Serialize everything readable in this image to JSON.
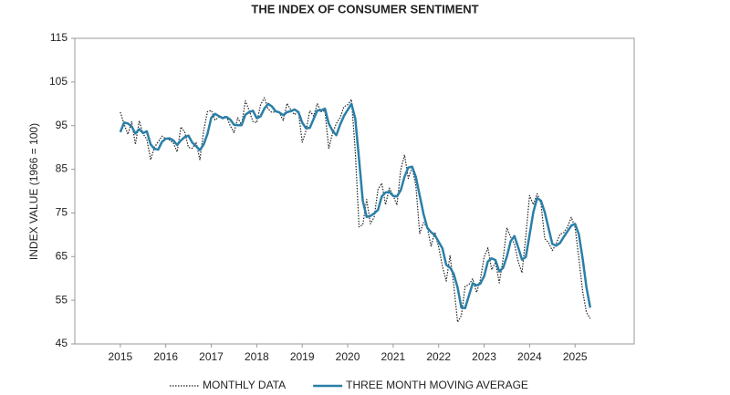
{
  "chart_data": {
    "type": "line",
    "title": "THE INDEX OF CONSUMER SENTIMENT",
    "y_label": "INDEX VALUE (1966 = 100)",
    "xlim": [
      2014,
      2026.3
    ],
    "ylim": [
      45,
      115
    ],
    "xticks": [
      2015,
      2016,
      2017,
      2018,
      2019,
      2020,
      2021,
      2022,
      2023,
      2024,
      2025
    ],
    "yticks": [
      45,
      55,
      65,
      75,
      85,
      95,
      105,
      115
    ],
    "legend": "bottom",
    "x": [
      2015,
      2015.083,
      2015.167,
      2015.25,
      2015.333,
      2015.417,
      2015.5,
      2015.583,
      2015.667,
      2015.75,
      2015.833,
      2015.917,
      2016,
      2016.083,
      2016.167,
      2016.25,
      2016.333,
      2016.417,
      2016.5,
      2016.583,
      2016.667,
      2016.75,
      2016.833,
      2016.917,
      2017,
      2017.083,
      2017.167,
      2017.25,
      2017.333,
      2017.417,
      2017.5,
      2017.583,
      2017.667,
      2017.75,
      2017.833,
      2017.917,
      2018,
      2018.083,
      2018.167,
      2018.25,
      2018.333,
      2018.417,
      2018.5,
      2018.583,
      2018.667,
      2018.75,
      2018.833,
      2018.917,
      2019,
      2019.083,
      2019.167,
      2019.25,
      2019.333,
      2019.417,
      2019.5,
      2019.583,
      2019.667,
      2019.75,
      2019.833,
      2019.917,
      2020,
      2020.083,
      2020.167,
      2020.25,
      2020.333,
      2020.417,
      2020.5,
      2020.583,
      2020.667,
      2020.75,
      2020.833,
      2020.917,
      2021,
      2021.083,
      2021.167,
      2021.25,
      2021.333,
      2021.417,
      2021.5,
      2021.583,
      2021.667,
      2021.75,
      2021.833,
      2021.917,
      2022,
      2022.083,
      2022.167,
      2022.25,
      2022.333,
      2022.417,
      2022.5,
      2022.583,
      2022.667,
      2022.75,
      2022.833,
      2022.917,
      2023,
      2023.083,
      2023.167,
      2023.25,
      2023.333,
      2023.417,
      2023.5,
      2023.583,
      2023.667,
      2023.75,
      2023.833,
      2023.917,
      2024,
      2024.083,
      2024.167,
      2024.25,
      2024.333,
      2024.417,
      2024.5,
      2024.583,
      2024.667,
      2024.75,
      2024.833,
      2024.917,
      2025,
      2025.083,
      2025.167,
      2025.25,
      2025.333
    ],
    "series": [
      {
        "name": "MONTHLY DATA",
        "color": "#222222",
        "dash": "dotted",
        "values": [
          98.1,
          95.4,
          93.0,
          95.9,
          90.7,
          96.1,
          93.1,
          91.9,
          87.2,
          90.0,
          91.3,
          92.6,
          92.0,
          91.7,
          91.0,
          89.0,
          94.7,
          93.5,
          90.0,
          89.8,
          91.2,
          87.2,
          93.8,
          98.2,
          98.5,
          96.3,
          96.9,
          97.0,
          97.1,
          95.0,
          93.4,
          96.8,
          95.1,
          100.7,
          98.5,
          95.9,
          95.7,
          99.7,
          101.4,
          98.8,
          98.0,
          98.2,
          97.9,
          96.2,
          100.1,
          98.6,
          97.5,
          98.3,
          91.2,
          93.8,
          98.4,
          97.2,
          100.0,
          98.2,
          98.4,
          89.8,
          93.2,
          95.5,
          96.8,
          99.3,
          99.8,
          101.0,
          89.1,
          71.8,
          72.3,
          78.1,
          72.5,
          74.1,
          80.4,
          81.8,
          76.9,
          80.7,
          79.0,
          76.8,
          84.9,
          88.3,
          82.9,
          85.5,
          81.2,
          70.3,
          72.8,
          71.7,
          67.4,
          70.6,
          67.2,
          62.8,
          59.4,
          65.2,
          58.4,
          50.0,
          51.5,
          58.2,
          58.6,
          59.9,
          56.8,
          59.7,
          64.9,
          67.0,
          62.0,
          63.7,
          59.0,
          64.4,
          71.6,
          69.5,
          67.9,
          63.8,
          61.3,
          69.7,
          79.0,
          76.9,
          79.4,
          77.2,
          69.1,
          68.2,
          66.4,
          67.9,
          70.1,
          70.5,
          71.8,
          74.0,
          71.7,
          64.7,
          57.0,
          52.2,
          50.8
        ]
      },
      {
        "name": "THREE MONTH MOVING AVERAGE",
        "color": "#2a7fa8",
        "dash": "solid",
        "values": [
          93.5,
          95.7,
          95.5,
          94.8,
          93.2,
          94.2,
          93.3,
          93.7,
          90.7,
          89.7,
          89.5,
          91.3,
          92.0,
          92.1,
          91.6,
          90.6,
          91.6,
          92.4,
          92.7,
          91.1,
          90.3,
          89.4,
          90.7,
          93.1,
          96.8,
          97.7,
          97.2,
          96.7,
          97.0,
          96.4,
          95.2,
          95.1,
          95.1,
          97.5,
          98.1,
          98.4,
          96.7,
          97.1,
          98.9,
          100.0,
          99.4,
          98.3,
          98.0,
          97.4,
          98.1,
          98.3,
          98.7,
          98.1,
          95.7,
          94.4,
          94.5,
          96.5,
          98.5,
          98.5,
          98.9,
          95.5,
          93.8,
          92.8,
          95.2,
          97.2,
          98.6,
          100.0,
          96.6,
          87.3,
          77.7,
          74.1,
          74.3,
          74.9,
          75.7,
          78.8,
          79.7,
          79.8,
          78.9,
          78.8,
          80.2,
          83.3,
          85.4,
          85.6,
          83.2,
          79.0,
          74.8,
          71.6,
          70.6,
          69.9,
          68.4,
          66.9,
          63.1,
          62.5,
          61.0,
          57.9,
          53.3,
          53.2,
          56.1,
          58.9,
          58.4,
          58.8,
          60.5,
          63.9,
          64.6,
          64.2,
          61.6,
          62.4,
          65.0,
          68.5,
          69.7,
          67.1,
          64.3,
          64.9,
          70.0,
          75.2,
          78.4,
          77.8,
          75.2,
          71.5,
          67.9,
          67.5,
          68.1,
          69.5,
          70.8,
          72.1,
          72.5,
          70.1,
          64.5,
          58.0,
          53.3
        ]
      }
    ]
  }
}
